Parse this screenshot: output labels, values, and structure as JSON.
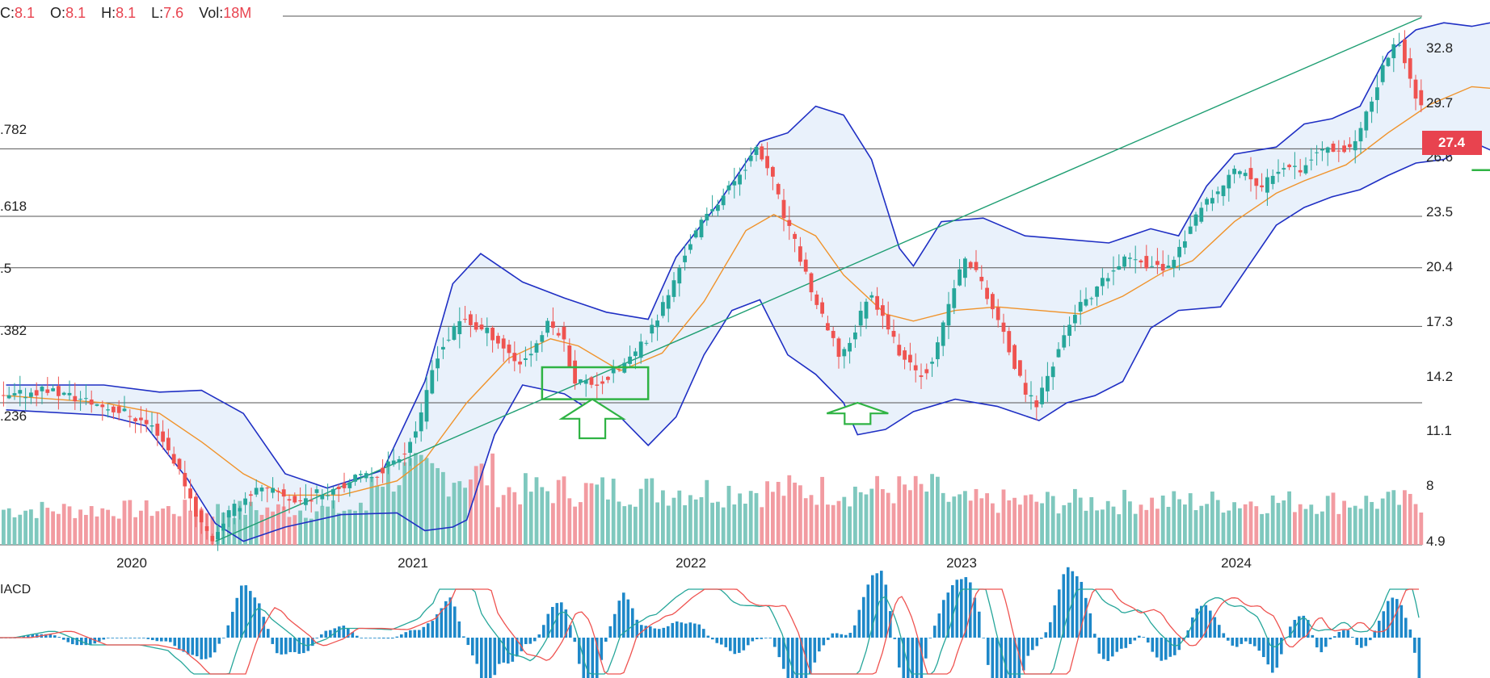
{
  "ohlc": {
    "items": [
      {
        "label": "C:",
        "value": "8.1"
      },
      {
        "label": "O:",
        "value": "8.1"
      },
      {
        "label": "H:",
        "value": "8.1"
      },
      {
        "label": "L:",
        "value": "7.6"
      },
      {
        "label": "Vol:",
        "value": "18M"
      }
    ]
  },
  "price_tag": "27.4",
  "macd_label": "IACD",
  "fib_labels": [
    ".782",
    ".618",
    ".5",
    ".382",
    ".236"
  ],
  "colors": {
    "up": "#26a69a",
    "down": "#ef5350",
    "bollinger": "#1f2fc4",
    "ma": "#f0932b",
    "trend": "#1e9e72",
    "annotation": "#2fb344",
    "macd_line": "#26a69a",
    "signal_line": "#ef5350",
    "histogram": "#1e88c9"
  },
  "chart_data": {
    "type": "candlestick",
    "x_axis": {
      "ticks": [
        "2020",
        "2021",
        "2022",
        "2023",
        "2024"
      ]
    },
    "y_axis": {
      "ticks": [
        32.8,
        29.7,
        26.6,
        23.5,
        20.4,
        17.3,
        14.2,
        11.1,
        8.0,
        4.9
      ],
      "range": [
        4.9,
        34.5
      ]
    },
    "fibonacci_levels": [
      {
        "label": ".782",
        "price": 27.1
      },
      {
        "label": ".618",
        "price": 23.3
      },
      {
        "label": ".5",
        "price": 20.4
      },
      {
        "label": ".382",
        "price": 17.1
      },
      {
        "label": ".236",
        "price": 12.8
      }
    ],
    "last_price": 27.4,
    "support_level": 26.0,
    "price_series": [
      {
        "t": 2019.55,
        "p": 13.0
      },
      {
        "t": 2019.7,
        "p": 13.6
      },
      {
        "t": 2019.85,
        "p": 12.9
      },
      {
        "t": 2020.0,
        "p": 12.2
      },
      {
        "t": 2020.1,
        "p": 11.3
      },
      {
        "t": 2020.15,
        "p": 10.0
      },
      {
        "t": 2020.2,
        "p": 8.4
      },
      {
        "t": 2020.25,
        "p": 6.3
      },
      {
        "t": 2020.3,
        "p": 5.1
      },
      {
        "t": 2020.35,
        "p": 6.4
      },
      {
        "t": 2020.45,
        "p": 7.9
      },
      {
        "t": 2020.55,
        "p": 7.7
      },
      {
        "t": 2020.6,
        "p": 7.2
      },
      {
        "t": 2020.7,
        "p": 7.8
      },
      {
        "t": 2020.8,
        "p": 8.4
      },
      {
        "t": 2020.9,
        "p": 8.9
      },
      {
        "t": 2021.0,
        "p": 10.3
      },
      {
        "t": 2021.05,
        "p": 12.0
      },
      {
        "t": 2021.1,
        "p": 15.4
      },
      {
        "t": 2021.15,
        "p": 16.5
      },
      {
        "t": 2021.2,
        "p": 17.6
      },
      {
        "t": 2021.25,
        "p": 17.0
      },
      {
        "t": 2021.3,
        "p": 16.7
      },
      {
        "t": 2021.4,
        "p": 15.0
      },
      {
        "t": 2021.45,
        "p": 15.8
      },
      {
        "t": 2021.5,
        "p": 17.2
      },
      {
        "t": 2021.55,
        "p": 16.8
      },
      {
        "t": 2021.6,
        "p": 14.1
      },
      {
        "t": 2021.65,
        "p": 13.9
      },
      {
        "t": 2021.7,
        "p": 14.0
      },
      {
        "t": 2021.8,
        "p": 15.3
      },
      {
        "t": 2021.85,
        "p": 16.2
      },
      {
        "t": 2021.9,
        "p": 17.8
      },
      {
        "t": 2021.95,
        "p": 19.4
      },
      {
        "t": 2022.0,
        "p": 21.5
      },
      {
        "t": 2022.05,
        "p": 22.8
      },
      {
        "t": 2022.1,
        "p": 24.0
      },
      {
        "t": 2022.15,
        "p": 24.8
      },
      {
        "t": 2022.2,
        "p": 26.0
      },
      {
        "t": 2022.25,
        "p": 27.0
      },
      {
        "t": 2022.3,
        "p": 25.8
      },
      {
        "t": 2022.35,
        "p": 23.2
      },
      {
        "t": 2022.4,
        "p": 21.3
      },
      {
        "t": 2022.45,
        "p": 19.0
      },
      {
        "t": 2022.5,
        "p": 17.0
      },
      {
        "t": 2022.55,
        "p": 15.4
      },
      {
        "t": 2022.6,
        "p": 16.7
      },
      {
        "t": 2022.65,
        "p": 19.0
      },
      {
        "t": 2022.7,
        "p": 18.0
      },
      {
        "t": 2022.75,
        "p": 16.0
      },
      {
        "t": 2022.8,
        "p": 14.8
      },
      {
        "t": 2022.85,
        "p": 14.4
      },
      {
        "t": 2022.9,
        "p": 16.0
      },
      {
        "t": 2022.95,
        "p": 19.0
      },
      {
        "t": 2023.0,
        "p": 21.0
      },
      {
        "t": 2023.05,
        "p": 19.8
      },
      {
        "t": 2023.1,
        "p": 18.0
      },
      {
        "t": 2023.15,
        "p": 16.0
      },
      {
        "t": 2023.2,
        "p": 13.8
      },
      {
        "t": 2023.25,
        "p": 12.6
      },
      {
        "t": 2023.3,
        "p": 14.6
      },
      {
        "t": 2023.35,
        "p": 16.5
      },
      {
        "t": 2023.4,
        "p": 18.2
      },
      {
        "t": 2023.45,
        "p": 18.6
      },
      {
        "t": 2023.5,
        "p": 19.8
      },
      {
        "t": 2023.6,
        "p": 21.2
      },
      {
        "t": 2023.65,
        "p": 20.6
      },
      {
        "t": 2023.7,
        "p": 20.3
      },
      {
        "t": 2023.75,
        "p": 21.0
      },
      {
        "t": 2023.8,
        "p": 22.6
      },
      {
        "t": 2023.85,
        "p": 23.8
      },
      {
        "t": 2023.9,
        "p": 24.5
      },
      {
        "t": 2023.95,
        "p": 25.8
      },
      {
        "t": 2024.0,
        "p": 25.9
      },
      {
        "t": 2024.05,
        "p": 24.6
      },
      {
        "t": 2024.1,
        "p": 25.8
      },
      {
        "t": 2024.15,
        "p": 26.4
      },
      {
        "t": 2024.2,
        "p": 26.0
      },
      {
        "t": 2024.25,
        "p": 26.8
      },
      {
        "t": 2024.3,
        "p": 27.3
      },
      {
        "t": 2024.35,
        "p": 27.0
      },
      {
        "t": 2024.4,
        "p": 27.6
      },
      {
        "t": 2024.45,
        "p": 29.5
      },
      {
        "t": 2024.5,
        "p": 32.0
      },
      {
        "t": 2024.55,
        "p": 33.3
      },
      {
        "t": 2024.6,
        "p": 30.5
      },
      {
        "t": 2024.65,
        "p": 29.2
      },
      {
        "t": 2024.7,
        "p": 31.6
      },
      {
        "t": 2024.75,
        "p": 31.8
      },
      {
        "t": 2024.8,
        "p": 30.0
      },
      {
        "t": 2024.85,
        "p": 28.2
      },
      {
        "t": 2024.9,
        "p": 27.0
      },
      {
        "t": 2024.95,
        "p": 26.2
      },
      {
        "t": 2025.0,
        "p": 27.0
      },
      {
        "t": 2025.05,
        "p": 27.4
      }
    ],
    "bollinger_upper": [
      {
        "t": 2019.55,
        "p": 13.8
      },
      {
        "t": 2019.9,
        "p": 13.8
      },
      {
        "t": 2020.1,
        "p": 13.4
      },
      {
        "t": 2020.25,
        "p": 13.5
      },
      {
        "t": 2020.4,
        "p": 12.2
      },
      {
        "t": 2020.55,
        "p": 8.8
      },
      {
        "t": 2020.7,
        "p": 8.0
      },
      {
        "t": 2020.9,
        "p": 9.0
      },
      {
        "t": 2021.05,
        "p": 14.0
      },
      {
        "t": 2021.15,
        "p": 19.5
      },
      {
        "t": 2021.25,
        "p": 21.2
      },
      {
        "t": 2021.4,
        "p": 19.6
      },
      {
        "t": 2021.55,
        "p": 18.7
      },
      {
        "t": 2021.7,
        "p": 17.9
      },
      {
        "t": 2021.85,
        "p": 17.5
      },
      {
        "t": 2021.95,
        "p": 21.0
      },
      {
        "t": 2022.1,
        "p": 24.0
      },
      {
        "t": 2022.25,
        "p": 27.5
      },
      {
        "t": 2022.35,
        "p": 28.0
      },
      {
        "t": 2022.45,
        "p": 29.5
      },
      {
        "t": 2022.55,
        "p": 29.0
      },
      {
        "t": 2022.65,
        "p": 26.5
      },
      {
        "t": 2022.75,
        "p": 21.5
      },
      {
        "t": 2022.8,
        "p": 20.5
      },
      {
        "t": 2022.9,
        "p": 23.0
      },
      {
        "t": 2023.05,
        "p": 23.2
      },
      {
        "t": 2023.2,
        "p": 22.2
      },
      {
        "t": 2023.35,
        "p": 22.0
      },
      {
        "t": 2023.5,
        "p": 21.8
      },
      {
        "t": 2023.65,
        "p": 22.6
      },
      {
        "t": 2023.75,
        "p": 22.2
      },
      {
        "t": 2023.85,
        "p": 25.0
      },
      {
        "t": 2023.95,
        "p": 26.8
      },
      {
        "t": 2024.1,
        "p": 27.2
      },
      {
        "t": 2024.2,
        "p": 28.5
      },
      {
        "t": 2024.3,
        "p": 28.8
      },
      {
        "t": 2024.4,
        "p": 29.5
      },
      {
        "t": 2024.5,
        "p": 32.5
      },
      {
        "t": 2024.6,
        "p": 33.8
      },
      {
        "t": 2024.7,
        "p": 34.2
      },
      {
        "t": 2024.8,
        "p": 34.0
      },
      {
        "t": 2024.9,
        "p": 34.3
      },
      {
        "t": 2025.0,
        "p": 34.0
      },
      {
        "t": 2025.05,
        "p": 33.2
      }
    ],
    "bollinger_lower": [
      {
        "t": 2019.55,
        "p": 12.4
      },
      {
        "t": 2019.9,
        "p": 12.1
      },
      {
        "t": 2020.05,
        "p": 11.5
      },
      {
        "t": 2020.2,
        "p": 8.5
      },
      {
        "t": 2020.3,
        "p": 6.0
      },
      {
        "t": 2020.4,
        "p": 5.0
      },
      {
        "t": 2020.55,
        "p": 5.8
      },
      {
        "t": 2020.75,
        "p": 6.5
      },
      {
        "t": 2020.95,
        "p": 6.6
      },
      {
        "t": 2021.05,
        "p": 5.6
      },
      {
        "t": 2021.15,
        "p": 5.8
      },
      {
        "t": 2021.2,
        "p": 6.2
      },
      {
        "t": 2021.3,
        "p": 11.0
      },
      {
        "t": 2021.4,
        "p": 13.8
      },
      {
        "t": 2021.55,
        "p": 13.3
      },
      {
        "t": 2021.65,
        "p": 12.3
      },
      {
        "t": 2021.75,
        "p": 12.0
      },
      {
        "t": 2021.85,
        "p": 10.4
      },
      {
        "t": 2021.95,
        "p": 12.0
      },
      {
        "t": 2022.05,
        "p": 15.5
      },
      {
        "t": 2022.15,
        "p": 18.0
      },
      {
        "t": 2022.25,
        "p": 18.6
      },
      {
        "t": 2022.35,
        "p": 15.5
      },
      {
        "t": 2022.45,
        "p": 14.4
      },
      {
        "t": 2022.55,
        "p": 12.8
      },
      {
        "t": 2022.6,
        "p": 11.0
      },
      {
        "t": 2022.7,
        "p": 11.3
      },
      {
        "t": 2022.8,
        "p": 12.3
      },
      {
        "t": 2022.95,
        "p": 13.0
      },
      {
        "t": 2023.1,
        "p": 12.6
      },
      {
        "t": 2023.25,
        "p": 11.8
      },
      {
        "t": 2023.35,
        "p": 12.8
      },
      {
        "t": 2023.45,
        "p": 13.2
      },
      {
        "t": 2023.55,
        "p": 14.0
      },
      {
        "t": 2023.65,
        "p": 17.0
      },
      {
        "t": 2023.75,
        "p": 18.0
      },
      {
        "t": 2023.9,
        "p": 18.2
      },
      {
        "t": 2024.0,
        "p": 20.5
      },
      {
        "t": 2024.1,
        "p": 22.8
      },
      {
        "t": 2024.2,
        "p": 23.8
      },
      {
        "t": 2024.3,
        "p": 24.4
      },
      {
        "t": 2024.4,
        "p": 24.8
      },
      {
        "t": 2024.5,
        "p": 25.6
      },
      {
        "t": 2024.6,
        "p": 26.3
      },
      {
        "t": 2024.7,
        "p": 26.5
      },
      {
        "t": 2024.8,
        "p": 27.5
      },
      {
        "t": 2024.9,
        "p": 26.8
      },
      {
        "t": 2025.0,
        "p": 25.8
      },
      {
        "t": 2025.05,
        "p": 25.6
      }
    ],
    "moving_average": [
      {
        "t": 2019.55,
        "p": 13.2
      },
      {
        "t": 2019.9,
        "p": 12.8
      },
      {
        "t": 2020.1,
        "p": 12.2
      },
      {
        "t": 2020.25,
        "p": 10.6
      },
      {
        "t": 2020.4,
        "p": 8.8
      },
      {
        "t": 2020.55,
        "p": 7.6
      },
      {
        "t": 2020.75,
        "p": 7.6
      },
      {
        "t": 2020.95,
        "p": 8.4
      },
      {
        "t": 2021.05,
        "p": 9.6
      },
      {
        "t": 2021.2,
        "p": 12.8
      },
      {
        "t": 2021.35,
        "p": 15.3
      },
      {
        "t": 2021.5,
        "p": 16.4
      },
      {
        "t": 2021.6,
        "p": 16.0
      },
      {
        "t": 2021.75,
        "p": 14.6
      },
      {
        "t": 2021.9,
        "p": 15.6
      },
      {
        "t": 2022.05,
        "p": 18.5
      },
      {
        "t": 2022.2,
        "p": 22.5
      },
      {
        "t": 2022.3,
        "p": 23.4
      },
      {
        "t": 2022.45,
        "p": 22.2
      },
      {
        "t": 2022.55,
        "p": 20.0
      },
      {
        "t": 2022.7,
        "p": 17.8
      },
      {
        "t": 2022.8,
        "p": 17.4
      },
      {
        "t": 2022.95,
        "p": 18.0
      },
      {
        "t": 2023.1,
        "p": 18.2
      },
      {
        "t": 2023.25,
        "p": 18.0
      },
      {
        "t": 2023.4,
        "p": 17.8
      },
      {
        "t": 2023.55,
        "p": 18.8
      },
      {
        "t": 2023.7,
        "p": 20.2
      },
      {
        "t": 2023.8,
        "p": 20.8
      },
      {
        "t": 2023.95,
        "p": 23.0
      },
      {
        "t": 2024.1,
        "p": 24.6
      },
      {
        "t": 2024.2,
        "p": 25.3
      },
      {
        "t": 2024.35,
        "p": 26.2
      },
      {
        "t": 2024.5,
        "p": 28.0
      },
      {
        "t": 2024.65,
        "p": 29.6
      },
      {
        "t": 2024.8,
        "p": 30.6
      },
      {
        "t": 2024.95,
        "p": 30.4
      },
      {
        "t": 2025.05,
        "p": 29.6
      }
    ],
    "trend_line": [
      {
        "t": 2020.3,
        "p": 5.0
      },
      {
        "t": 2024.62,
        "p": 34.5
      }
    ],
    "annotations": [
      {
        "type": "box",
        "t": [
          2021.47,
          2021.85
        ],
        "p": [
          13.0,
          14.8
        ]
      },
      {
        "type": "arrow-up",
        "t": 2021.65,
        "p_base": 10.8,
        "p_tip": 13.0
      },
      {
        "type": "arrow-up",
        "t": 2022.6,
        "p_base": 11.6,
        "p_tip": 12.8
      },
      {
        "type": "box",
        "t": [
          2024.96,
          2025.22
        ],
        "p": [
          26.0,
          27.3
        ]
      },
      {
        "type": "line",
        "t": [
          2024.8,
          2025.22
        ],
        "p": 25.9
      },
      {
        "type": "arrow-up",
        "t": 2025.15,
        "p_base": 23.3,
        "p_tip": 25.6
      }
    ]
  }
}
